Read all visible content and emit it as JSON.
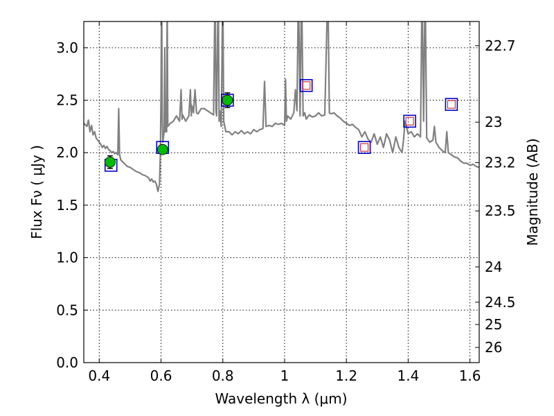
{
  "chart_data": {
    "type": "scatter",
    "xlabel": "Wavelength  λ (μm)",
    "ylabel": "Flux  Fν  ( μJy )",
    "y2label": "Magnitude (AB)",
    "xlim": [
      0.35,
      1.63
    ],
    "ylim": [
      0.0,
      3.25
    ],
    "grid": true,
    "x_ticks": [
      0.4,
      0.6,
      0.8,
      1.0,
      1.2,
      1.4,
      1.6
    ],
    "x_tick_labels": [
      "0.4",
      "0.6",
      "0.8",
      "1",
      "1.2",
      "1.4",
      "1.6"
    ],
    "y_ticks": [
      0.0,
      0.5,
      1.0,
      1.5,
      2.0,
      2.5,
      3.0
    ],
    "y_tick_labels": [
      "0.0",
      "0.5",
      "1.0",
      "1.5",
      "2.0",
      "2.5",
      "3.0"
    ],
    "y2_ticks": [
      {
        "label": "22.7",
        "mag": 22.7
      },
      {
        "label": "23",
        "mag": 23.0
      },
      {
        "label": "23.2",
        "mag": 23.2
      },
      {
        "label": "23.5",
        "mag": 23.5
      },
      {
        "label": "24",
        "mag": 24.0
      },
      {
        "label": "24.5",
        "mag": 24.5
      },
      {
        "label": "25",
        "mag": 25.0
      },
      {
        "label": "26",
        "mag": 26.0
      }
    ],
    "colors": {
      "spectrum": "#808080",
      "observed": "#00bb00",
      "model_box": "#0000cc",
      "model_inner": "#cc3333"
    },
    "series": [
      {
        "kind": "spectrum",
        "points": [
          [
            0.35,
            2.28
          ],
          [
            0.36,
            2.25
          ],
          [
            0.365,
            2.31
          ],
          [
            0.37,
            2.2
          ],
          [
            0.375,
            2.26
          ],
          [
            0.38,
            2.17
          ],
          [
            0.385,
            2.2
          ],
          [
            0.39,
            2.14
          ],
          [
            0.395,
            2.12
          ],
          [
            0.4,
            2.1
          ],
          [
            0.405,
            2.08
          ],
          [
            0.41,
            2.05
          ],
          [
            0.415,
            2.07
          ],
          [
            0.42,
            2.04
          ],
          [
            0.425,
            2.06
          ],
          [
            0.43,
            2.03
          ],
          [
            0.435,
            2.02
          ],
          [
            0.44,
            2.0
          ],
          [
            0.445,
            2.01
          ],
          [
            0.45,
            1.99
          ],
          [
            0.455,
            2.0
          ],
          [
            0.46,
            1.98
          ],
          [
            0.463,
            2.42
          ],
          [
            0.466,
            1.98
          ],
          [
            0.47,
            1.93
          ],
          [
            0.48,
            1.9
          ],
          [
            0.49,
            1.87
          ],
          [
            0.5,
            1.86
          ],
          [
            0.51,
            1.84
          ],
          [
            0.52,
            1.82
          ],
          [
            0.53,
            1.81
          ],
          [
            0.54,
            1.79
          ],
          [
            0.55,
            1.78
          ],
          [
            0.56,
            1.76
          ],
          [
            0.565,
            1.73
          ],
          [
            0.57,
            1.75
          ],
          [
            0.575,
            1.72
          ],
          [
            0.58,
            1.73
          ],
          [
            0.585,
            1.7
          ],
          [
            0.59,
            1.63
          ],
          [
            0.595,
            1.7
          ],
          [
            0.598,
            2.0
          ],
          [
            0.6,
            2.55
          ],
          [
            0.602,
            3.6
          ],
          [
            0.604,
            2.3
          ],
          [
            0.606,
            2.1
          ],
          [
            0.61,
            2.2
          ],
          [
            0.612,
            3.0
          ],
          [
            0.614,
            2.2
          ],
          [
            0.618,
            2.2
          ],
          [
            0.62,
            3.5
          ],
          [
            0.622,
            2.25
          ],
          [
            0.63,
            2.28
          ],
          [
            0.64,
            2.3
          ],
          [
            0.65,
            2.35
          ],
          [
            0.66,
            2.3
          ],
          [
            0.665,
            2.6
          ],
          [
            0.668,
            2.32
          ],
          [
            0.67,
            2.36
          ],
          [
            0.68,
            2.3
          ],
          [
            0.69,
            2.35
          ],
          [
            0.695,
            2.6
          ],
          [
            0.698,
            2.35
          ],
          [
            0.7,
            2.45
          ],
          [
            0.705,
            2.38
          ],
          [
            0.71,
            2.6
          ],
          [
            0.715,
            2.38
          ],
          [
            0.72,
            2.37
          ],
          [
            0.73,
            2.42
          ],
          [
            0.74,
            2.42
          ],
          [
            0.75,
            2.4
          ],
          [
            0.76,
            2.38
          ],
          [
            0.77,
            2.36
          ],
          [
            0.775,
            3.6
          ],
          [
            0.778,
            2.4
          ],
          [
            0.78,
            2.35
          ],
          [
            0.785,
            3.6
          ],
          [
            0.788,
            2.3
          ],
          [
            0.79,
            2.4
          ],
          [
            0.795,
            2.25
          ],
          [
            0.8,
            3.6
          ],
          [
            0.803,
            2.3
          ],
          [
            0.81,
            2.2
          ],
          [
            0.82,
            2.2
          ],
          [
            0.83,
            2.17
          ],
          [
            0.84,
            2.2
          ],
          [
            0.85,
            2.18
          ],
          [
            0.86,
            2.21
          ],
          [
            0.87,
            2.18
          ],
          [
            0.88,
            2.2
          ],
          [
            0.89,
            2.18
          ],
          [
            0.9,
            2.22
          ],
          [
            0.91,
            2.2
          ],
          [
            0.92,
            2.22
          ],
          [
            0.93,
            2.23
          ],
          [
            0.935,
            2.68
          ],
          [
            0.94,
            2.25
          ],
          [
            0.95,
            2.26
          ],
          [
            0.96,
            2.25
          ],
          [
            0.97,
            2.28
          ],
          [
            0.98,
            2.27
          ],
          [
            0.99,
            2.28
          ],
          [
            1.0,
            2.26
          ],
          [
            1.003,
            2.7
          ],
          [
            1.006,
            2.3
          ],
          [
            1.01,
            2.35
          ],
          [
            1.02,
            2.32
          ],
          [
            1.03,
            2.38
          ],
          [
            1.035,
            2.6
          ],
          [
            1.04,
            2.4
          ],
          [
            1.045,
            3.6
          ],
          [
            1.05,
            2.35
          ],
          [
            1.055,
            3.6
          ],
          [
            1.06,
            2.35
          ],
          [
            1.065,
            2.38
          ],
          [
            1.07,
            2.32
          ],
          [
            1.08,
            2.36
          ],
          [
            1.09,
            2.34
          ],
          [
            1.1,
            2.35
          ],
          [
            1.11,
            2.38
          ],
          [
            1.12,
            2.35
          ],
          [
            1.13,
            2.36
          ],
          [
            1.14,
            3.6
          ],
          [
            1.145,
            2.38
          ],
          [
            1.15,
            2.37
          ],
          [
            1.16,
            2.38
          ],
          [
            1.17,
            2.35
          ],
          [
            1.18,
            2.33
          ],
          [
            1.19,
            2.3
          ],
          [
            1.2,
            2.28
          ],
          [
            1.21,
            2.26
          ],
          [
            1.22,
            2.27
          ],
          [
            1.23,
            2.24
          ],
          [
            1.24,
            2.22
          ],
          [
            1.25,
            2.15
          ],
          [
            1.26,
            2.2
          ],
          [
            1.27,
            2.13
          ],
          [
            1.28,
            2.1
          ],
          [
            1.29,
            2.18
          ],
          [
            1.3,
            2.08
          ],
          [
            1.31,
            2.15
          ],
          [
            1.32,
            2.05
          ],
          [
            1.33,
            2.18
          ],
          [
            1.34,
            2.12
          ],
          [
            1.35,
            2.0
          ],
          [
            1.36,
            2.15
          ],
          [
            1.37,
            2.05
          ],
          [
            1.38,
            2.0
          ],
          [
            1.385,
            2.12
          ],
          [
            1.39,
            2.3
          ],
          [
            1.4,
            2.18
          ],
          [
            1.41,
            2.2
          ],
          [
            1.42,
            2.15
          ],
          [
            1.43,
            2.18
          ],
          [
            1.44,
            2.15
          ],
          [
            1.445,
            3.6
          ],
          [
            1.45,
            2.3
          ],
          [
            1.455,
            3.6
          ],
          [
            1.46,
            2.14
          ],
          [
            1.47,
            2.1
          ],
          [
            1.48,
            2.12
          ],
          [
            1.485,
            2.25
          ],
          [
            1.49,
            2.1
          ],
          [
            1.5,
            2.05
          ],
          [
            1.51,
            2.02
          ],
          [
            1.52,
            2.0
          ],
          [
            1.525,
            2.2
          ],
          [
            1.53,
            2.0
          ],
          [
            1.54,
            1.98
          ],
          [
            1.55,
            1.96
          ],
          [
            1.56,
            1.95
          ],
          [
            1.57,
            1.92
          ],
          [
            1.58,
            1.9
          ],
          [
            1.59,
            1.9
          ],
          [
            1.6,
            1.88
          ],
          [
            1.61,
            1.89
          ],
          [
            1.62,
            1.87
          ],
          [
            1.63,
            1.86
          ]
        ]
      },
      {
        "kind": "observed",
        "points": [
          {
            "x": 0.435,
            "y": 1.91,
            "err": 0.06
          },
          {
            "x": 0.605,
            "y": 2.03,
            "err": 0.04
          },
          {
            "x": 0.815,
            "y": 2.5,
            "err": 0.07
          }
        ]
      },
      {
        "kind": "model",
        "points": [
          {
            "x": 0.438,
            "y": 1.88,
            "inner": false
          },
          {
            "x": 0.605,
            "y": 2.05,
            "inner": false
          },
          {
            "x": 0.815,
            "y": 2.5,
            "inner": false
          },
          {
            "x": 1.07,
            "y": 2.64,
            "inner": true
          },
          {
            "x": 1.258,
            "y": 2.05,
            "inner": true
          },
          {
            "x": 1.405,
            "y": 2.3,
            "inner": true
          },
          {
            "x": 1.54,
            "y": 2.46,
            "inner": true
          }
        ]
      }
    ]
  }
}
